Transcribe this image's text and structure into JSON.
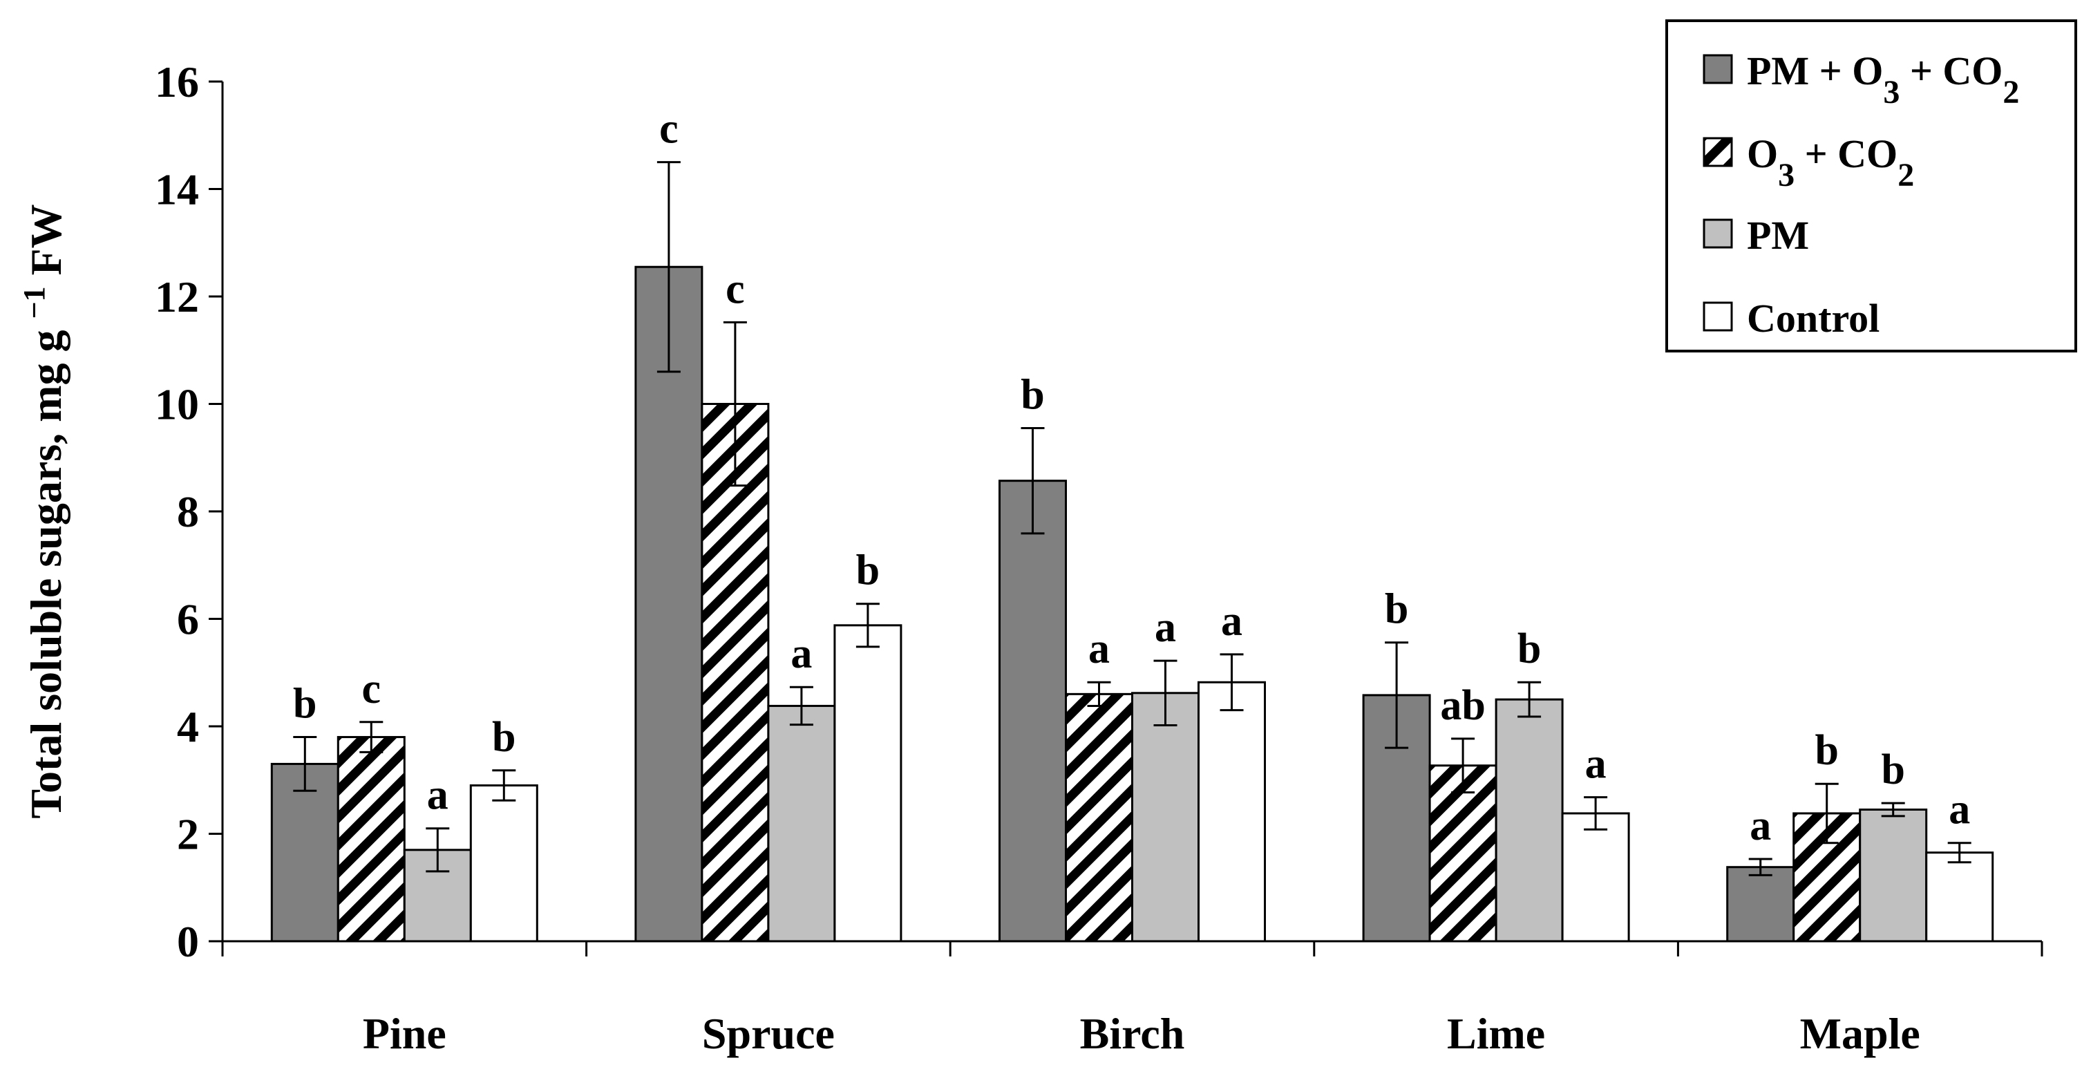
{
  "chart_data": {
    "type": "bar",
    "title": "",
    "xlabel": "",
    "ylabel": "Total soluble sugars, mg g",
    "ylabel_superscript": "−1",
    "ylabel_suffix": "FW",
    "ylim": [
      0,
      16
    ],
    "yticks": [
      0,
      2,
      4,
      6,
      8,
      10,
      12,
      14,
      16
    ],
    "ytick_labels": [
      "0",
      "2",
      "4",
      "6",
      "8",
      "10",
      "12",
      "14",
      "16"
    ],
    "categories": [
      "Pine",
      "Spruce",
      "Birch",
      "Lime",
      "Maple"
    ],
    "legend_position": "top-right",
    "series": [
      {
        "name": "PM + O3 + CO2",
        "legend_parts": [
          "PM + O",
          "3",
          " + CO",
          "2"
        ],
        "fill": "#808080",
        "pattern": "solid",
        "values": [
          3.3,
          12.55,
          8.57,
          4.58,
          1.38
        ],
        "errors": [
          0.5,
          1.95,
          0.98,
          0.98,
          0.15
        ],
        "letters": [
          "b",
          "c",
          "b",
          "b",
          "a"
        ]
      },
      {
        "name": "O3 + CO2",
        "legend_parts": [
          "O",
          "3",
          " + CO",
          "2"
        ],
        "fill": "#ffffff",
        "pattern": "diagonal-hatch",
        "values": [
          3.8,
          10.0,
          4.6,
          3.27,
          2.38
        ],
        "errors": [
          0.28,
          1.52,
          0.22,
          0.5,
          0.55
        ],
        "letters": [
          "c",
          "c",
          "a",
          "ab",
          "b"
        ]
      },
      {
        "name": "PM",
        "legend_parts": [
          "PM"
        ],
        "fill": "#c0c0c0",
        "pattern": "solid",
        "values": [
          1.7,
          4.38,
          4.62,
          4.5,
          2.45
        ],
        "errors": [
          0.4,
          0.35,
          0.6,
          0.32,
          0.12
        ],
        "letters": [
          "a",
          "a",
          "a",
          "b",
          "b"
        ]
      },
      {
        "name": "Control",
        "legend_parts": [
          "Control"
        ],
        "fill": "#ffffff",
        "pattern": "solid",
        "values": [
          2.9,
          5.88,
          4.82,
          2.38,
          1.65
        ],
        "errors": [
          0.28,
          0.4,
          0.52,
          0.3,
          0.18
        ],
        "letters": [
          "b",
          "b",
          "a",
          "a",
          "a"
        ]
      }
    ]
  }
}
